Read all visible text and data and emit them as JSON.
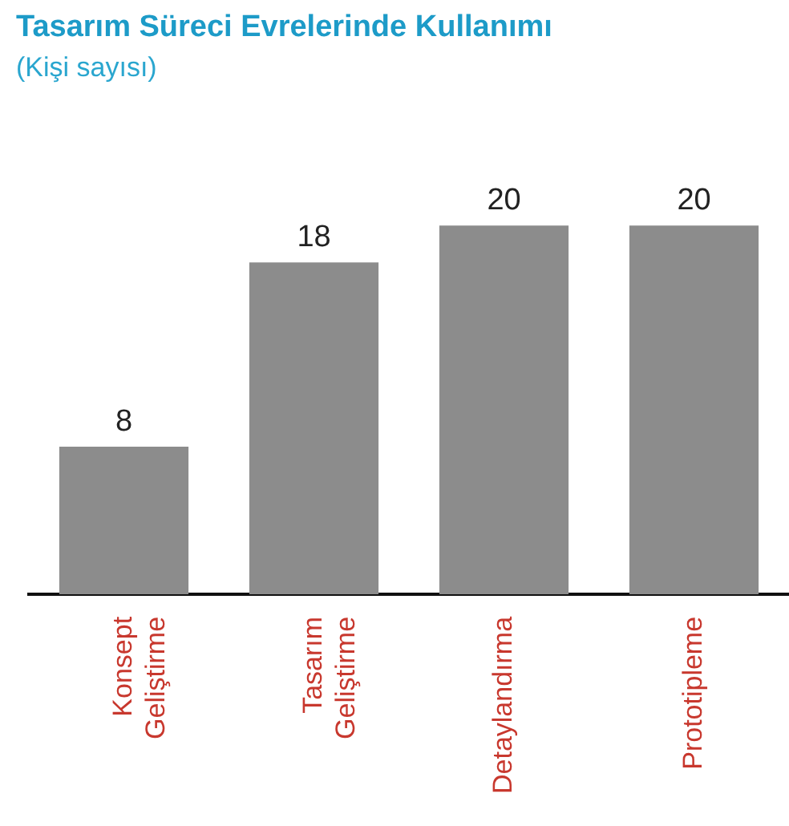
{
  "chart_data": {
    "type": "bar",
    "title": "Tasarım Süreci Evrelerinde Kullanımı",
    "subtitle": "(Kişi sayısı)",
    "categories": [
      "Konsept Geliştirme",
      "Tasarım Geliştirme",
      "Detaylandırma",
      "Prototipleme"
    ],
    "values": [
      8,
      18,
      20,
      20
    ],
    "color": "#8c8c8c",
    "data_labels": true,
    "grid": false,
    "legend": false,
    "tick_labels": "x"
  }
}
